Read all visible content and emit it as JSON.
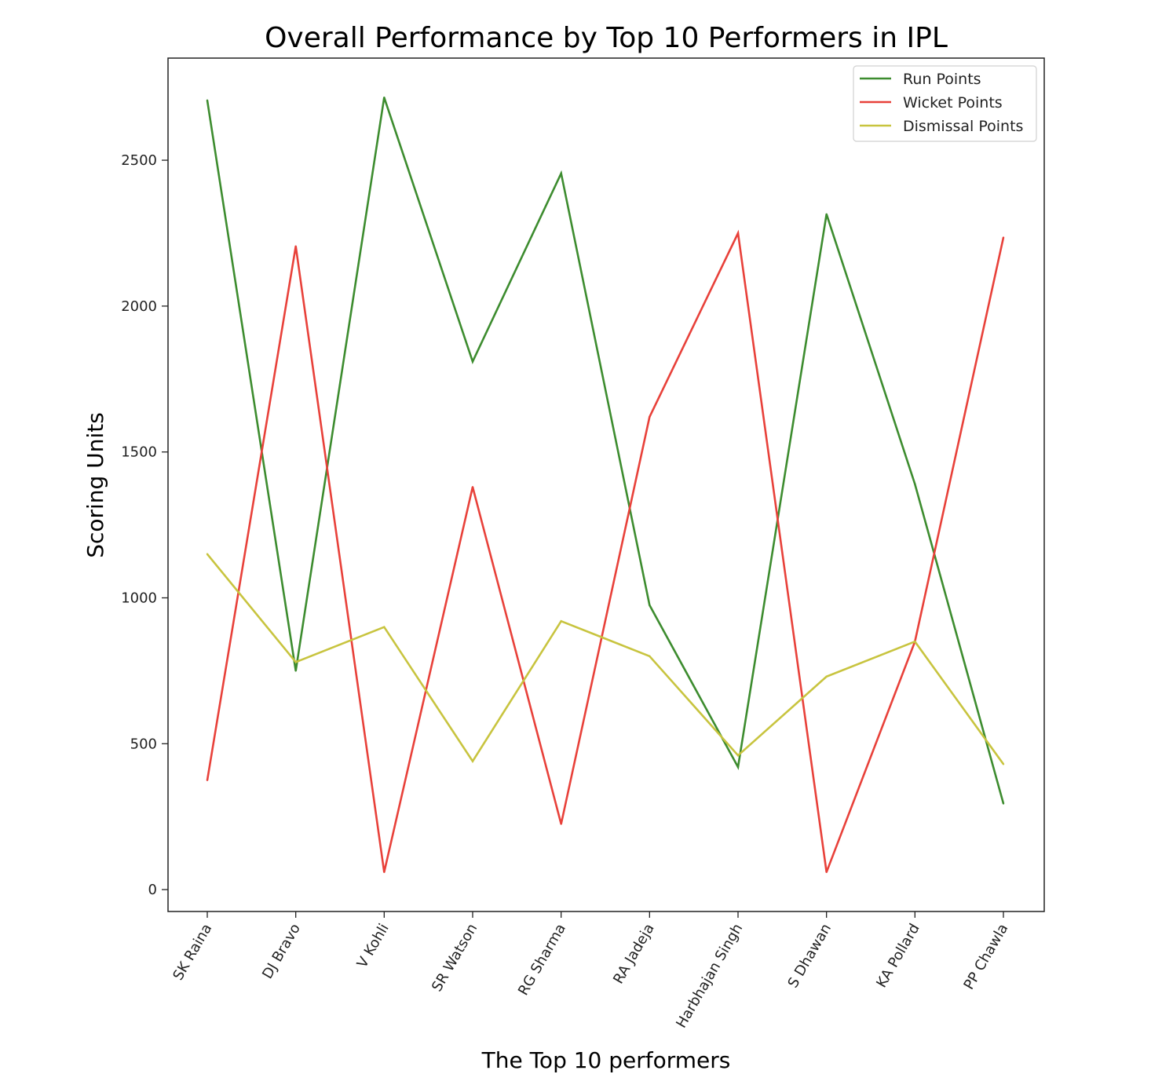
{
  "chart_data": {
    "type": "line",
    "title": "Overall Performance by Top 10 Performers in IPL",
    "xlabel": "The Top 10 performers",
    "ylabel": "Scoring Units",
    "categories": [
      "SK Raina",
      "DJ Bravo",
      "V Kohli",
      "SR Watson",
      "RG Sharma",
      "RA Jadeja",
      "Harbhajan Singh",
      "S Dhawan",
      "KA Pollard",
      "PP Chawla"
    ],
    "series": [
      {
        "name": "Run Points",
        "color": "#3d8c2f",
        "values": [
          2705,
          750,
          2715,
          1810,
          2455,
          975,
          420,
          2315,
          1390,
          295
        ]
      },
      {
        "name": "Wicket Points",
        "color": "#e8413a",
        "values": [
          375,
          2205,
          60,
          1380,
          225,
          1620,
          2250,
          60,
          850,
          2235
        ]
      },
      {
        "name": "Dismissal Points",
        "color": "#c8c43f",
        "values": [
          1150,
          780,
          900,
          440,
          920,
          800,
          460,
          730,
          850,
          430
        ]
      }
    ],
    "yticks": [
      0,
      500,
      1000,
      1500,
      2000,
      2500
    ],
    "ylim": [
      -75,
      2850
    ],
    "grid": false,
    "legend_position": "top-right"
  }
}
